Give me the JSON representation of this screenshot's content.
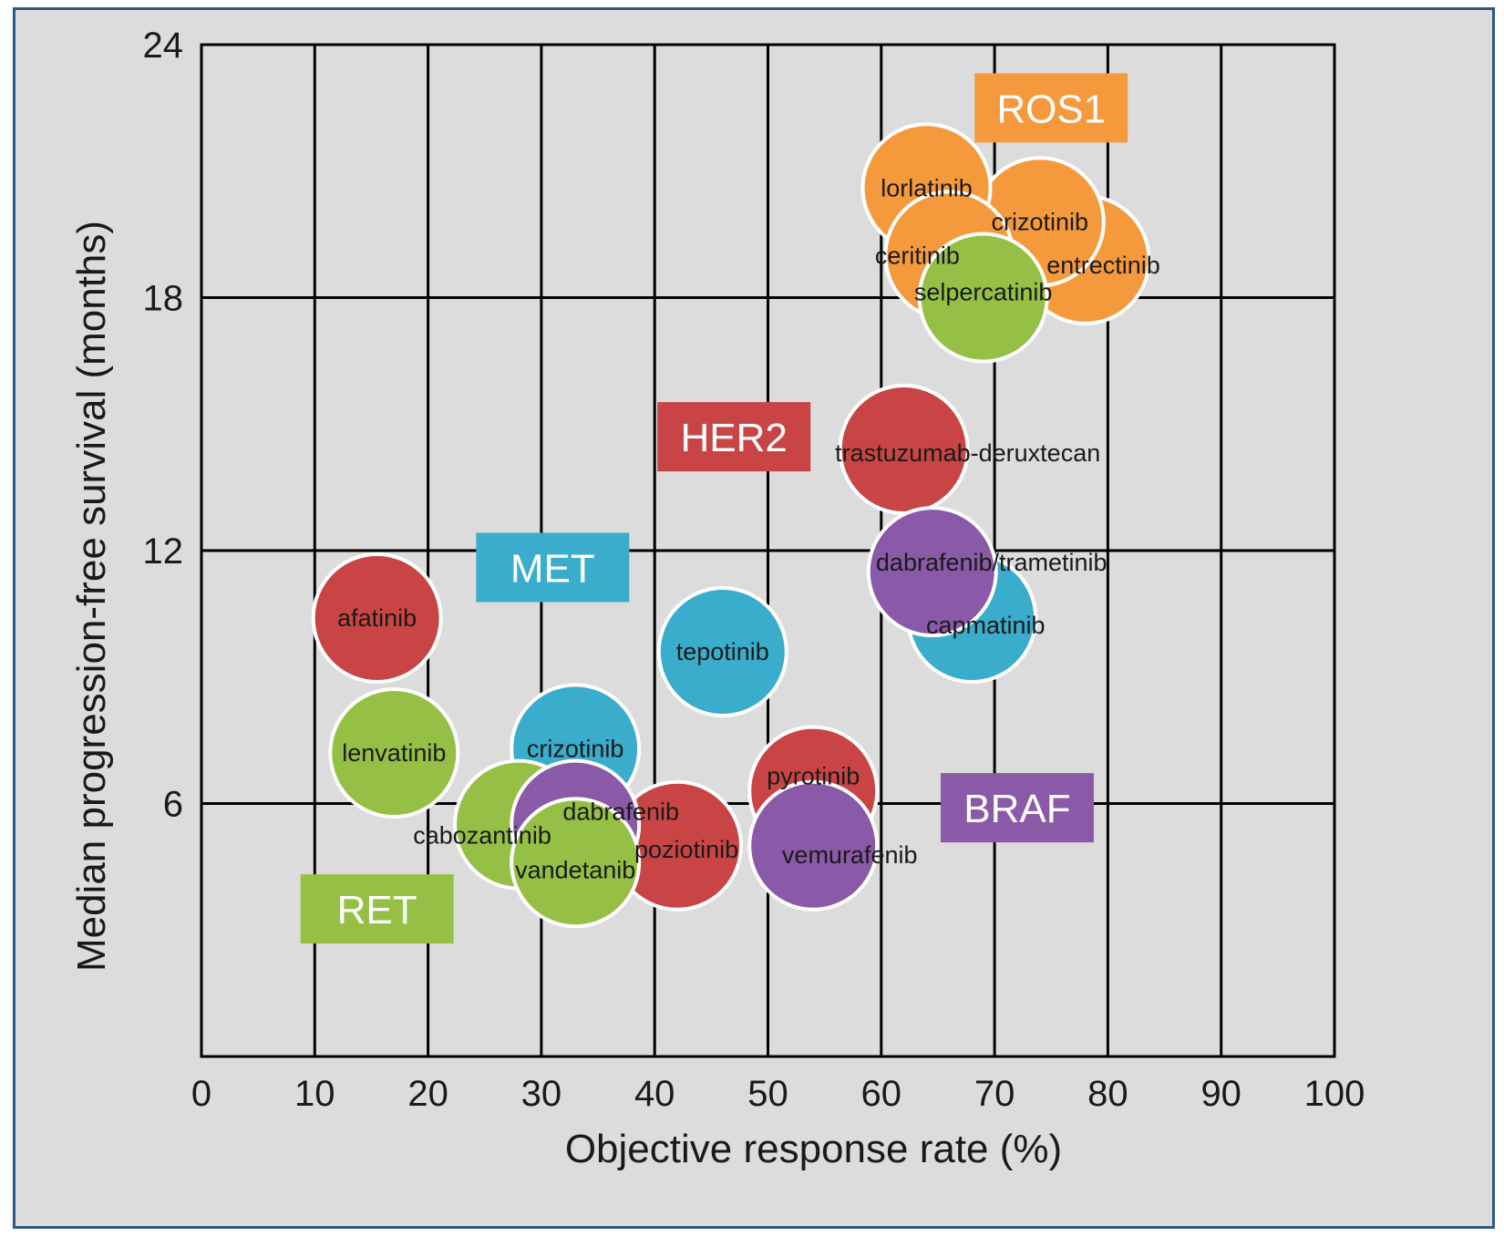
{
  "chart_data": {
    "type": "scatter",
    "title": "",
    "xlabel": "Objective response rate (%)",
    "ylabel": "Median progression-free survival (months)",
    "xlim": [
      0,
      100
    ],
    "ylim": [
      0,
      24
    ],
    "x_ticks": [
      "0",
      "10",
      "20",
      "30",
      "40",
      "50",
      "60",
      "70",
      "80",
      "90",
      "100"
    ],
    "y_ticks": [
      "6",
      "12",
      "18",
      "24"
    ],
    "grid": true,
    "groups": [
      {
        "name": "ROS1",
        "color": "#f59a3c",
        "label_at": [
          75,
          22.5
        ]
      },
      {
        "name": "HER2",
        "color": "#c94545",
        "label_at": [
          47,
          14.7
        ]
      },
      {
        "name": "MET",
        "color": "#3aaccc",
        "label_at": [
          31,
          11.6
        ]
      },
      {
        "name": "BRAF",
        "color": "#8a5aa8",
        "label_at": [
          72,
          5.9
        ]
      },
      {
        "name": "RET",
        "color": "#96c045",
        "label_at": [
          15.5,
          3.5
        ]
      }
    ],
    "points": [
      {
        "label": "entrectinib",
        "group": "ROS1",
        "x": 78,
        "y": 18.9
      },
      {
        "label": "crizotinib",
        "group": "ROS1",
        "x": 74,
        "y": 19.8
      },
      {
        "label": "lorlatinib",
        "group": "ROS1",
        "x": 64,
        "y": 20.6
      },
      {
        "label": "ceritinib",
        "group": "ROS1",
        "x": 66,
        "y": 19.0
      },
      {
        "label": "selpercatinib",
        "group": "RET",
        "x": 69,
        "y": 18.0
      },
      {
        "label": "trastuzumab-deruxtecan",
        "group": "HER2",
        "x": 62,
        "y": 14.4
      },
      {
        "label": "capmatinib",
        "group": "MET",
        "x": 68,
        "y": 10.4
      },
      {
        "label": "dabrafenib/trametinib",
        "group": "BRAF",
        "x": 64.5,
        "y": 11.5
      },
      {
        "label": "afatinib",
        "group": "HER2",
        "x": 15.5,
        "y": 10.4
      },
      {
        "label": "tepotinib",
        "group": "MET",
        "x": 46,
        "y": 9.6
      },
      {
        "label": "crizotinib",
        "group": "MET",
        "x": 33,
        "y": 7.3
      },
      {
        "label": "lenvatinib",
        "group": "RET",
        "x": 17,
        "y": 7.2
      },
      {
        "label": "pyrotinib",
        "group": "HER2",
        "x": 54,
        "y": 6.3
      },
      {
        "label": "poziotinib",
        "group": "HER2",
        "x": 42,
        "y": 5.0
      },
      {
        "label": "cabozantinib",
        "group": "RET",
        "x": 28,
        "y": 5.5
      },
      {
        "label": "dabrafenib",
        "group": "BRAF",
        "x": 33,
        "y": 5.5
      },
      {
        "label": "vemurafenib",
        "group": "BRAF",
        "x": 54,
        "y": 5.0
      },
      {
        "label": "vandetanib",
        "group": "RET",
        "x": 33,
        "y": 4.6
      }
    ]
  }
}
